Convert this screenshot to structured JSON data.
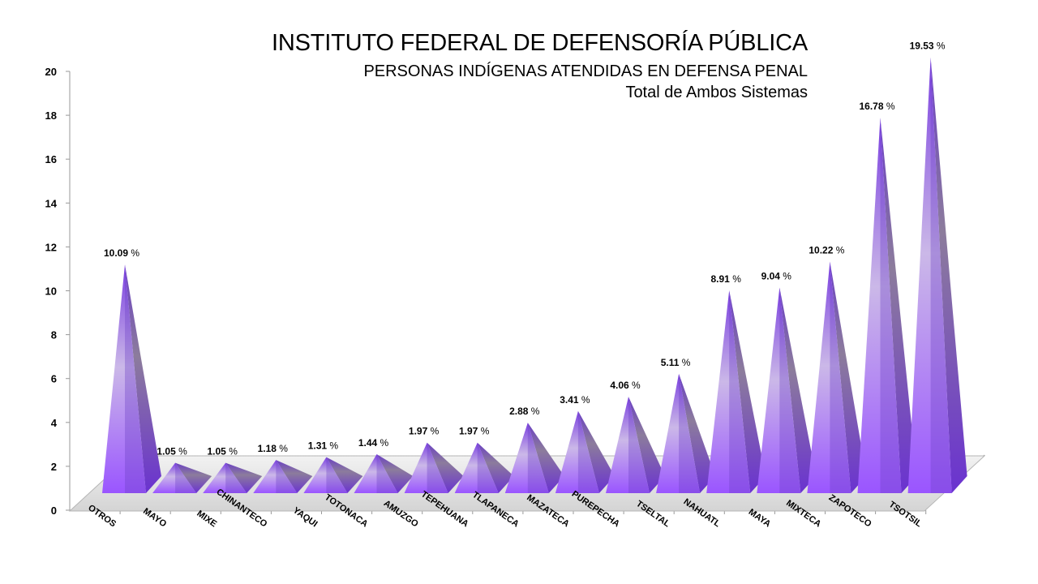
{
  "chart_data": {
    "type": "bar",
    "title": "INSTITUTO FEDERAL DE DEFENSORÍA PÚBLICA",
    "subtitle": "PERSONAS INDÍGENAS ATENDIDAS EN DEFENSA PENAL",
    "subtitle2": "Total de Ambos Sistemas",
    "categories": [
      "OTROS",
      "MAYO",
      "MIXE",
      "CHINANTECO",
      "YAQUI",
      "TOTONACA",
      "AMUZGO",
      "TEPEHUANA",
      "TLAPANECA",
      "MAZATECA",
      "PUREPECHA",
      "TSELTAL",
      "NAHUATL",
      "MAYA",
      "MIXTECA",
      "ZAPOTECO",
      "TSOTSIL"
    ],
    "values": [
      10.09,
      1.05,
      1.05,
      1.18,
      1.31,
      1.44,
      1.97,
      1.97,
      2.88,
      3.41,
      4.06,
      5.11,
      8.91,
      9.04,
      10.22,
      16.78,
      19.53
    ],
    "data_labels": [
      "10.09",
      "1.05",
      "1.05",
      "1.18",
      "1.31",
      "1.44",
      "1.97",
      "1.97",
      "2.88",
      "3.41",
      "4.06",
      "5.11",
      "8.91",
      "9.04",
      "10.22",
      "16.78",
      "19.53"
    ],
    "value_suffix": " %",
    "y_ticks": [
      "0",
      "2",
      "4",
      "6",
      "8",
      "10",
      "12",
      "14",
      "16",
      "18",
      "20"
    ],
    "ylim": [
      0,
      20
    ],
    "shape": "pyramid-3d",
    "grid": false,
    "legend": "none",
    "colors": {
      "pyramid_light": "#cbb8e8",
      "pyramid_mid": "#9a6cf0",
      "pyramid_dark": "#6a3fc4",
      "pyramid_gray": "#8c7c9c",
      "floor": "#e6e6e6",
      "axis": "#999999"
    }
  }
}
